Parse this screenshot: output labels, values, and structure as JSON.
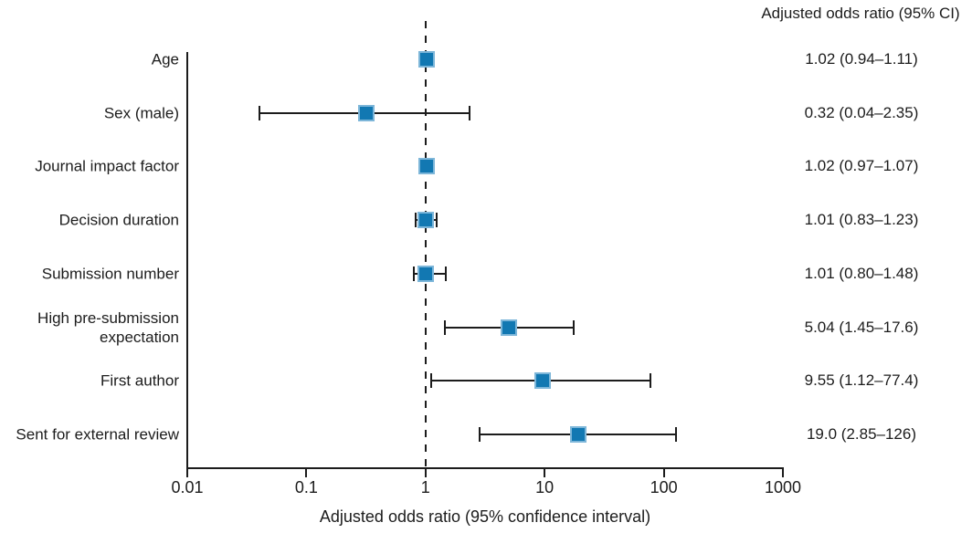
{
  "chart_data": {
    "type": "scatter",
    "variant": "forest-plot",
    "title": "",
    "xlabel": "Adjusted odds ratio (95% confidence interval)",
    "ylabel": "",
    "x_scale": "log",
    "xlim": [
      0.01,
      1000
    ],
    "x_ticks": [
      0.01,
      0.1,
      1,
      10,
      100,
      1000
    ],
    "x_tick_labels": [
      "0.01",
      "0.1",
      "1",
      "10",
      "100",
      "1000"
    ],
    "reference_line_x": 1,
    "grid": false,
    "value_column_header": "Adjusted odds ratio (95% CI)",
    "rows": [
      {
        "label": "Age",
        "or": 1.02,
        "ci_low": 0.94,
        "ci_high": 1.11,
        "value_text": "1.02 (0.94–1.11)"
      },
      {
        "label": "Sex (male)",
        "or": 0.32,
        "ci_low": 0.04,
        "ci_high": 2.35,
        "value_text": "0.32 (0.04–2.35)"
      },
      {
        "label": "Journal impact factor",
        "or": 1.02,
        "ci_low": 0.97,
        "ci_high": 1.07,
        "value_text": "1.02 (0.97–1.07)"
      },
      {
        "label": "Decision duration",
        "or": 1.01,
        "ci_low": 0.83,
        "ci_high": 1.23,
        "value_text": "1.01 (0.83–1.23)"
      },
      {
        "label": "Submission number",
        "or": 1.01,
        "ci_low": 0.8,
        "ci_high": 1.48,
        "value_text": "1.01 (0.80–1.48)"
      },
      {
        "label": "High pre-submission\nexpectation",
        "or": 5.04,
        "ci_low": 1.45,
        "ci_high": 17.6,
        "value_text": "5.04 (1.45–17.6)"
      },
      {
        "label": "First author",
        "or": 9.55,
        "ci_low": 1.12,
        "ci_high": 77.4,
        "value_text": "9.55 (1.12–77.4)"
      },
      {
        "label": "Sent for external review",
        "or": 19.0,
        "ci_low": 2.85,
        "ci_high": 126,
        "value_text": "19.0 (2.85–126)"
      }
    ],
    "colors": {
      "marker_fill": "#1278b2",
      "marker_edge": "#7db6d9",
      "line": "#1c1c1c",
      "text": "#1c1c1c"
    }
  }
}
